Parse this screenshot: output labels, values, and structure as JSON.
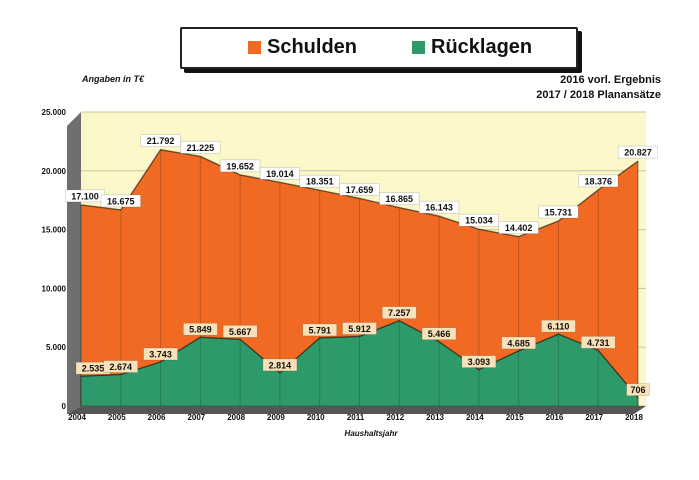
{
  "legend": {
    "debt_label": "Schulden",
    "reserves_label": "Rücklagen"
  },
  "unit_label": "Angaben in T€",
  "notes": [
    "2016 vorl. Ergebnis",
    "2017 / 2018 Planansätze"
  ],
  "colors": {
    "debt": "#f06a24",
    "reserves": "#2e9a6a",
    "backdrop": "#fbf7c8",
    "label_bg": "#f8e0b8"
  },
  "chart_data": {
    "type": "area",
    "x": [
      "2004",
      "2005",
      "2006",
      "2007",
      "2008",
      "2009",
      "2010",
      "2011",
      "2012",
      "2013",
      "2014",
      "2015",
      "2016",
      "2017",
      "2018"
    ],
    "xlabel": "Haushaltsjahr",
    "ylabel": "Angaben in T€",
    "ylim": [
      0,
      25000
    ],
    "yticks": [
      "0",
      "5.000",
      "10.000",
      "15.000",
      "20.000",
      "25.000"
    ],
    "series": [
      {
        "name": "Schulden",
        "values": [
          17100,
          16675,
          21792,
          21225,
          19652,
          19014,
          18351,
          17659,
          16865,
          16143,
          15034,
          14402,
          15731,
          18376,
          20827
        ],
        "labels": [
          "17.100",
          "16.675",
          "21.792",
          "21.225",
          "19.652",
          "19.014",
          "18.351",
          "17.659",
          "16.865",
          "16.143",
          "15.034",
          "14.402",
          "15.731",
          "18.376",
          "20.827"
        ]
      },
      {
        "name": "Rücklagen",
        "values": [
          2535,
          2674,
          3743,
          5849,
          5667,
          2814,
          5791,
          5912,
          7257,
          5466,
          3093,
          4685,
          6110,
          4731,
          706
        ],
        "labels": [
          "2.535",
          "2.674",
          "3.743",
          "5.849",
          "5.667",
          "2.814",
          "5.791",
          "5.912",
          "7.257",
          "5.466",
          "3.093",
          "4.685",
          "6.110",
          "4.731",
          "706"
        ]
      }
    ],
    "grid": true,
    "legend_position": "top"
  }
}
